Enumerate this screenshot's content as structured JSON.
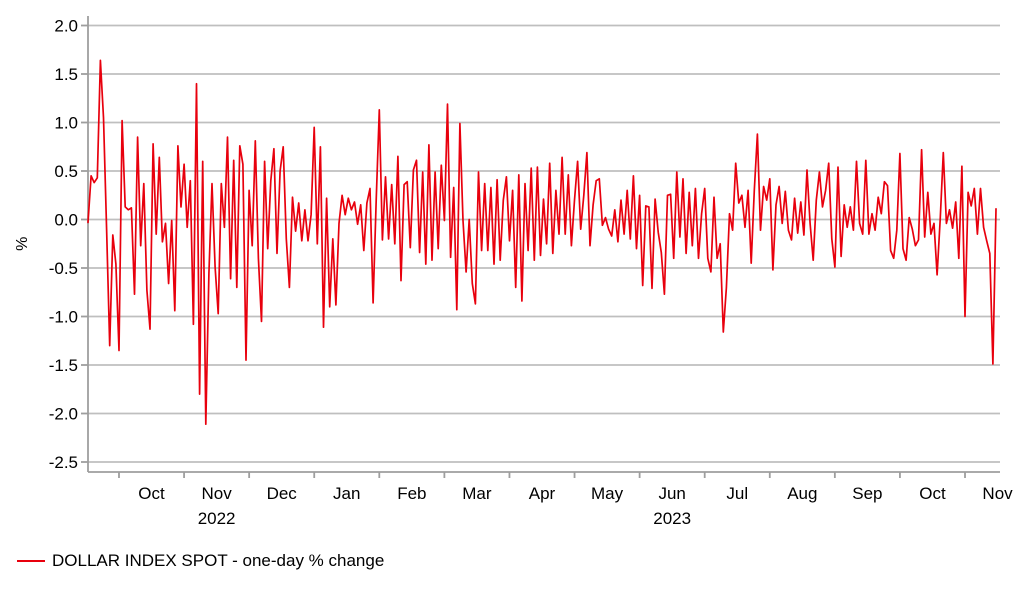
{
  "chart_data": {
    "type": "line",
    "title": "",
    "ylabel": "%",
    "xlabel": "",
    "ylim": [
      -2.6,
      2.1
    ],
    "grid": true,
    "legend_position": "bottom-left",
    "y_tick_labels": [
      "2.0",
      "1.5",
      "1.0",
      "0.5",
      "0.0",
      "-0.5",
      "-1.0",
      "-1.5",
      "-2.0",
      "-2.5"
    ],
    "y_tick_values": [
      2.0,
      1.5,
      1.0,
      0.5,
      0.0,
      -0.5,
      -1.0,
      -1.5,
      -2.0,
      -2.5
    ],
    "x_month_labels": [
      "Oct",
      "Nov",
      "Dec",
      "Jan",
      "Feb",
      "Mar",
      "Apr",
      "May",
      "Jun",
      "Jul",
      "Aug",
      "Sep",
      "Oct",
      "Nov"
    ],
    "x_month_boundary_indices": [
      10,
      31,
      52,
      73,
      94,
      115,
      136,
      157,
      178,
      199,
      220,
      241,
      262,
      283
    ],
    "x_year_labels": [
      {
        "label": "2022",
        "month_label_index": 1
      },
      {
        "label": "2023",
        "month_label_index": 8
      }
    ],
    "x_range_note": "daily data, mid-Sep 2022 to mid-Nov 2023",
    "series": [
      {
        "name": "DOLLAR INDEX SPOT - one-day % change",
        "color": "#e8000d",
        "values": [
          -0.03,
          0.45,
          0.38,
          0.43,
          1.64,
          1.05,
          -0.1,
          -1.3,
          -0.16,
          -0.46,
          -1.35,
          1.02,
          0.13,
          0.1,
          0.12,
          -0.77,
          0.85,
          -0.27,
          0.37,
          -0.73,
          -1.13,
          0.78,
          -0.15,
          0.64,
          -0.23,
          -0.04,
          -0.66,
          -0.01,
          -0.94,
          0.76,
          0.13,
          0.57,
          -0.08,
          0.4,
          -1.08,
          1.4,
          -1.8,
          0.6,
          -2.11,
          -0.56,
          0.37,
          -0.49,
          -0.97,
          0.37,
          -0.08,
          0.85,
          -0.61,
          0.61,
          -0.7,
          0.76,
          0.57,
          -1.45,
          0.3,
          -0.27,
          0.81,
          -0.4,
          -1.05,
          0.6,
          -0.3,
          0.4,
          0.73,
          -0.35,
          0.5,
          0.75,
          -0.2,
          -0.7,
          0.23,
          -0.12,
          0.17,
          -0.22,
          0.1,
          -0.22,
          0.05,
          0.95,
          -0.25,
          0.75,
          -1.11,
          0.22,
          -0.9,
          -0.2,
          -0.88,
          -0.04,
          0.25,
          0.05,
          0.22,
          0.1,
          0.18,
          -0.05,
          0.15,
          -0.32,
          0.17,
          0.32,
          -0.86,
          0.2,
          1.13,
          -0.21,
          0.44,
          -0.2,
          0.36,
          -0.25,
          0.65,
          -0.63,
          0.36,
          0.39,
          -0.29,
          0.51,
          0.61,
          -0.34,
          0.49,
          -0.46,
          0.77,
          -0.42,
          0.49,
          -0.3,
          0.56,
          -0.01,
          1.19,
          -0.39,
          0.33,
          -0.93,
          0.99,
          -0.01,
          -0.54,
          0.0,
          -0.66,
          -0.87,
          0.49,
          -0.32,
          0.37,
          -0.32,
          0.33,
          -0.46,
          0.41,
          -0.42,
          0.2,
          0.44,
          -0.22,
          0.3,
          -0.7,
          0.46,
          -0.84,
          0.37,
          -0.32,
          0.53,
          -0.42,
          0.54,
          -0.37,
          0.21,
          -0.25,
          0.58,
          -0.35,
          0.3,
          -0.15,
          0.64,
          -0.15,
          0.46,
          -0.27,
          0.2,
          0.6,
          -0.1,
          0.25,
          0.69,
          -0.27,
          0.15,
          0.4,
          0.42,
          -0.06,
          0.02,
          -0.1,
          -0.17,
          0.1,
          -0.23,
          0.2,
          -0.15,
          0.3,
          -0.2,
          0.45,
          -0.3,
          0.25,
          -0.68,
          0.14,
          0.13,
          -0.71,
          0.21,
          -0.13,
          -0.34,
          -0.77,
          0.25,
          0.26,
          -0.4,
          0.49,
          -0.18,
          0.42,
          -0.35,
          0.28,
          -0.27,
          0.32,
          -0.4,
          0.06,
          0.32,
          -0.4,
          -0.54,
          0.23,
          -0.4,
          -0.25,
          -1.16,
          -0.7,
          0.06,
          -0.11,
          0.58,
          0.17,
          0.25,
          -0.08,
          0.3,
          -0.45,
          0.3,
          0.88,
          -0.11,
          0.34,
          0.2,
          0.42,
          -0.52,
          0.15,
          0.34,
          -0.04,
          0.29,
          -0.11,
          -0.21,
          0.22,
          -0.14,
          0.18,
          -0.16,
          0.51,
          -0.04,
          -0.42,
          0.2,
          0.49,
          0.13,
          0.3,
          0.58,
          -0.2,
          -0.49,
          0.54,
          -0.38,
          0.15,
          -0.08,
          0.13,
          -0.11,
          0.6,
          -0.04,
          -0.15,
          0.61,
          -0.15,
          0.06,
          -0.11,
          0.23,
          0.06,
          0.39,
          0.35,
          -0.32,
          -0.4,
          -0.11,
          0.68,
          -0.3,
          -0.42,
          0.02,
          -0.1,
          -0.27,
          -0.21,
          0.72,
          -0.18,
          0.28,
          -0.15,
          -0.04,
          -0.57,
          0.0,
          0.69,
          -0.04,
          0.1,
          -0.09,
          0.18,
          -0.4,
          0.55,
          -1.0,
          0.28,
          0.14,
          0.32,
          -0.15,
          0.32,
          -0.08,
          -0.22,
          -0.35,
          -1.49,
          0.11
        ]
      }
    ]
  },
  "legend": {
    "label": "DOLLAR INDEX SPOT - one-day % change"
  },
  "colors": {
    "line": "#e8000d",
    "grid": "#bfbfbf",
    "axis": "#9e9e9e",
    "text": "#000000",
    "background": "#ffffff"
  }
}
